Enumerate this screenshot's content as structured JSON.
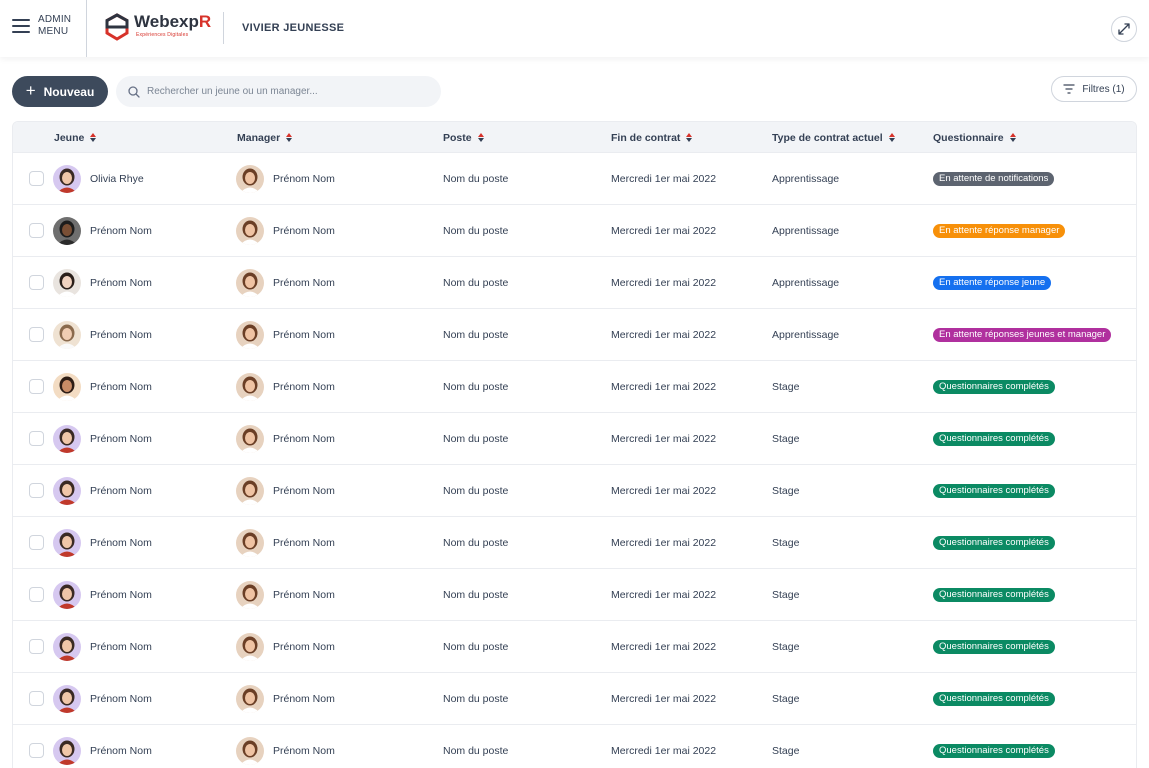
{
  "app": {
    "menu_label": "ADMIN MENU",
    "logo_main": "Webexp",
    "logo_r": "R",
    "logo_sub": "Expériences Digitales",
    "page_title": "VIVIER JEUNESSE"
  },
  "toolbar": {
    "new_label": "Nouveau",
    "search_placeholder": "Rechercher un jeune ou un manager...",
    "filters_label": "Filtres (1)"
  },
  "table": {
    "columns": [
      "Jeune",
      "Manager",
      "Poste",
      "Fin de contrat",
      "Type de contrat actuel",
      "Questionnaire"
    ],
    "status_colors": {
      "En attente de notifications": "#5d6470",
      "En attente réponse manager": "#f79009",
      "En attente réponse jeune": "#1570ef",
      "En attente réponses jeunes et manager": "#b0309e",
      "Questionnaires complétés": "#0b8a63"
    },
    "rows": [
      {
        "jeune": "Olivia Rhye",
        "avatar": "lilac",
        "manager": "Prénom Nom",
        "poste": "Nom du poste",
        "fin": "Mercredi 1er mai 2022",
        "type": "Apprentissage",
        "status": "En attente de notifications"
      },
      {
        "jeune": "Prénom Nom",
        "avatar": "dark",
        "manager": "Prénom Nom",
        "poste": "Nom du poste",
        "fin": "Mercredi 1er mai 2022",
        "type": "Apprentissage",
        "status": "En attente réponse manager"
      },
      {
        "jeune": "Prénom Nom",
        "avatar": "light",
        "manager": "Prénom Nom",
        "poste": "Nom du poste",
        "fin": "Mercredi 1er mai 2022",
        "type": "Apprentissage",
        "status": "En attente réponse jeune"
      },
      {
        "jeune": "Prénom Nom",
        "avatar": "beige",
        "manager": "Prénom Nom",
        "poste": "Nom du poste",
        "fin": "Mercredi 1er mai 2022",
        "type": "Apprentissage",
        "status": "En attente réponses jeunes et manager"
      },
      {
        "jeune": "Prénom Nom",
        "avatar": "tan",
        "manager": "Prénom Nom",
        "poste": "Nom du poste",
        "fin": "Mercredi 1er mai 2022",
        "type": "Stage",
        "status": "Questionnaires complétés"
      },
      {
        "jeune": "Prénom Nom",
        "avatar": "lilac",
        "manager": "Prénom Nom",
        "poste": "Nom du poste",
        "fin": "Mercredi 1er mai 2022",
        "type": "Stage",
        "status": "Questionnaires complétés"
      },
      {
        "jeune": "Prénom Nom",
        "avatar": "lilac",
        "manager": "Prénom Nom",
        "poste": "Nom du poste",
        "fin": "Mercredi 1er mai 2022",
        "type": "Stage",
        "status": "Questionnaires complétés"
      },
      {
        "jeune": "Prénom Nom",
        "avatar": "lilac",
        "manager": "Prénom Nom",
        "poste": "Nom du poste",
        "fin": "Mercredi 1er mai 2022",
        "type": "Stage",
        "status": "Questionnaires complétés"
      },
      {
        "jeune": "Prénom Nom",
        "avatar": "lilac",
        "manager": "Prénom Nom",
        "poste": "Nom du poste",
        "fin": "Mercredi 1er mai 2022",
        "type": "Stage",
        "status": "Questionnaires complétés"
      },
      {
        "jeune": "Prénom Nom",
        "avatar": "lilac",
        "manager": "Prénom Nom",
        "poste": "Nom du poste",
        "fin": "Mercredi 1er mai 2022",
        "type": "Stage",
        "status": "Questionnaires complétés"
      },
      {
        "jeune": "Prénom Nom",
        "avatar": "lilac",
        "manager": "Prénom Nom",
        "poste": "Nom du poste",
        "fin": "Mercredi 1er mai 2022",
        "type": "Stage",
        "status": "Questionnaires complétés"
      },
      {
        "jeune": "Prénom Nom",
        "avatar": "lilac",
        "manager": "Prénom Nom",
        "poste": "Nom du poste",
        "fin": "Mercredi 1er mai 2022",
        "type": "Stage",
        "status": "Questionnaires complétés"
      }
    ]
  }
}
